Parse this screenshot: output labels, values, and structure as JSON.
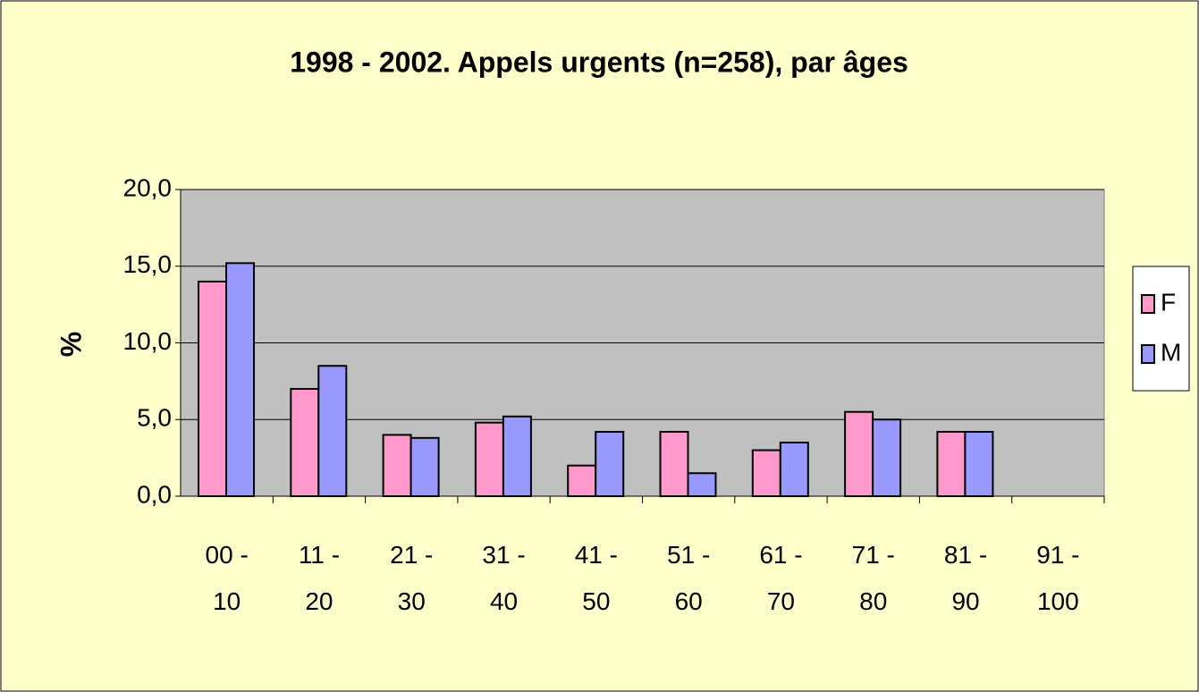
{
  "chart_data": {
    "type": "bar",
    "title": "1998 - 2002. Appels urgents (n=258), par âges",
    "y_label": "%",
    "categories": [
      "00 - 10",
      "11 - 20",
      "21 - 30",
      "31 - 40",
      "41 - 50",
      "51 - 60",
      "61 - 70",
      "71 - 80",
      "81 - 90",
      "91 - 100"
    ],
    "series": [
      {
        "name": "F",
        "color": "#ff99cc",
        "values": [
          14.0,
          7.0,
          4.0,
          4.8,
          2.0,
          4.2,
          3.0,
          5.5,
          4.2,
          0
        ]
      },
      {
        "name": "M",
        "color": "#9999ff",
        "values": [
          15.2,
          8.5,
          3.8,
          5.2,
          4.2,
          1.5,
          3.5,
          5.0,
          4.2,
          0
        ]
      }
    ],
    "ylim": [
      0,
      20
    ],
    "yticks": [
      {
        "value": 0,
        "label": "0,0"
      },
      {
        "value": 5,
        "label": "5,0"
      },
      {
        "value": 10,
        "label": "10,0"
      },
      {
        "value": 15,
        "label": "15,0"
      },
      {
        "value": 20,
        "label": "20,0"
      }
    ],
    "grid": true,
    "legend": "right"
  }
}
